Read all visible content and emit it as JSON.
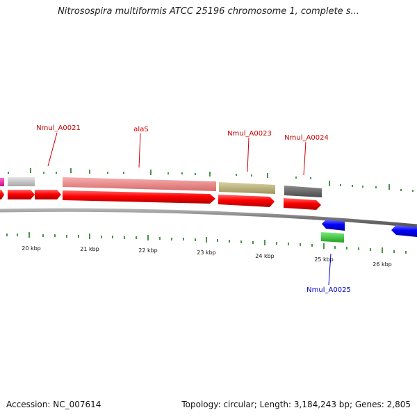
{
  "title": "Nitrosospira multiformis ATCC 25196 chromosome 1, complete s...",
  "footer": {
    "accession": "Accession: NC_007614",
    "summary": "Topology: circular; Length: 3,184,243 bp; Genes: 2,805"
  },
  "scale_labels": [
    "20 kbp",
    "21 kbp",
    "22 kbp",
    "23 kbp",
    "24 kbp",
    "25 kbp",
    "26 kbp"
  ],
  "gene_labels": [
    {
      "text": "Nmul_A0021",
      "color": "#cc0000"
    },
    {
      "text": "alaS",
      "color": "#cc0000"
    },
    {
      "text": "Nmul_A0023",
      "color": "#cc0000"
    },
    {
      "text": "Nmul_A0024",
      "color": "#cc0000"
    },
    {
      "text": "Nmul_A0025",
      "color": "#0000cc"
    }
  ],
  "colors": {
    "backbone": "#8a8a8a",
    "cds_forward": "#ff0000",
    "cds_reverse": "#0000ff",
    "tick": "#1a7a1a",
    "gene_magenta": "#ee22aa",
    "gene_lightgray": "#c8c8c8",
    "gene_salmon": "#ee8888",
    "gene_olive": "#bbb37a",
    "gene_darkgray": "#666666",
    "gene_green": "#33cc33"
  }
}
